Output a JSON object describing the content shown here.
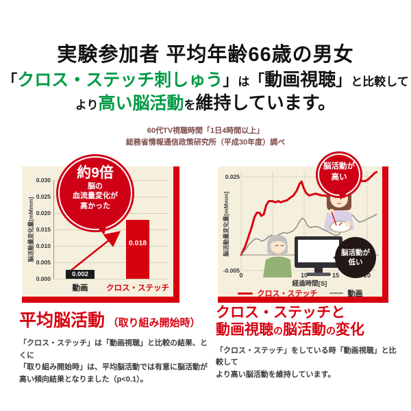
{
  "colors": {
    "red": "#d7000f",
    "green": "#009944",
    "cream": "#f5efdd",
    "maroon": "#7c4a4a",
    "black": "#1a1a1a",
    "gray_line": "#8a8a8a"
  },
  "headline": {
    "line1": "実験参加者 平均年齢66歳の男女",
    "line3_full": "より高い脳活動を維持しています。"
  },
  "rich": {
    "headline_line2": [
      {
        "t": "「",
        "c": "br"
      },
      {
        "t": "クロス・ステッチ刺しゅう",
        "c": "green"
      },
      {
        "t": "」",
        "c": "br"
      },
      {
        "t": "は",
        "c": "small"
      },
      {
        "t": "「",
        "c": "br"
      },
      {
        "t": "動画視聴",
        "c": "big"
      },
      {
        "t": "」",
        "c": "br"
      },
      {
        "t": "と比較して",
        "c": "small"
      }
    ],
    "headline_line3": [
      {
        "t": "より",
        "c": "small"
      },
      {
        "t": "高い脳活動",
        "c": "green"
      },
      {
        "t": "を",
        "c": "small"
      },
      {
        "t": "維持しています。",
        "c": "big"
      }
    ],
    "right_title_line2": [
      {
        "t": "動画視聴",
        "c": "n"
      },
      {
        "t": "の",
        "c": "s"
      },
      {
        "t": "脳活動",
        "c": "n"
      },
      {
        "t": "の",
        "c": "s"
      },
      {
        "t": "変化",
        "c": "n"
      }
    ]
  },
  "source": {
    "line1": "60代TV視聴時間「1日4時間以上」",
    "line2": "総務省情報通信政策研究所（平成30年度）調べ"
  },
  "chart_data": [
    {
      "type": "bar",
      "ylabel": "脳活動量変化量[mMmm]",
      "categories": [
        "動画",
        "クロス・ステッチ"
      ],
      "values": [
        0.002,
        0.018
      ],
      "value_labels": [
        "0.002",
        "0.018"
      ],
      "bar_colors": [
        "#1a1a1a",
        "#d7000f"
      ],
      "category_colors": [
        "#1a1a1a",
        "#d7000f"
      ],
      "ytick_labels": [
        "0.000",
        "0.005",
        "0.010",
        "0.015",
        "0.020",
        "0.025",
        "0.030"
      ],
      "ytick_step": 0.005,
      "ylim": [
        0,
        0.032
      ],
      "grid": "dotted horizontal",
      "annotation_bubble": {
        "headline": "約9倍",
        "lines": [
          "脳の",
          "血流量変化が",
          "高かった"
        ]
      }
    },
    {
      "type": "line",
      "xlabel": "経過時間[S]",
      "ylabel": "脳活動量変化量[mMmm]",
      "xticks": [
        0,
        5,
        10,
        15,
        20
      ],
      "xlim": [
        0,
        21.8
      ],
      "ylim": [
        -0.005,
        0.0285
      ],
      "ytick_top": {
        "value": 0.025,
        "label": "0.025"
      },
      "ytick_bottom": {
        "value": -0.005,
        "label": "-0.005"
      },
      "zero_line": 0,
      "legend_position": "bottom",
      "series": [
        {
          "name": "クロス・ステッチ",
          "color": "#d7000f",
          "width": 3,
          "points": [
            [
              0,
              0
            ],
            [
              0.7,
              0.003
            ],
            [
              1.2,
              0.006
            ],
            [
              1.7,
              0.009
            ],
            [
              2.1,
              0.012
            ],
            [
              2.5,
              0.0135
            ],
            [
              2.9,
              0.0135
            ],
            [
              3.2,
              0.0125
            ],
            [
              3.6,
              0.013
            ],
            [
              4.0,
              0.016
            ],
            [
              4.4,
              0.0172
            ],
            [
              5.0,
              0.0172
            ],
            [
              5.4,
              0.0168
            ],
            [
              5.9,
              0.0172
            ],
            [
              6.3,
              0.0168
            ],
            [
              6.8,
              0.0172
            ],
            [
              7.3,
              0.0175
            ],
            [
              7.8,
              0.0183
            ],
            [
              8.3,
              0.019
            ],
            [
              8.8,
              0.0205
            ],
            [
              9.3,
              0.0228
            ],
            [
              9.6,
              0.0235
            ],
            [
              9.9,
              0.0215
            ],
            [
              10.3,
              0.0198
            ],
            [
              10.8,
              0.019
            ],
            [
              11.3,
              0.0193
            ],
            [
              11.8,
              0.0196
            ],
            [
              12.3,
              0.0193
            ],
            [
              12.8,
              0.019
            ],
            [
              13.3,
              0.019
            ],
            [
              13.8,
              0.0185
            ],
            [
              14.3,
              0.018
            ],
            [
              14.8,
              0.0177
            ],
            [
              15.3,
              0.017
            ],
            [
              15.8,
              0.0167
            ],
            [
              16.2,
              0.0172
            ],
            [
              16.6,
              0.019
            ],
            [
              17.0,
              0.021
            ],
            [
              17.4,
              0.0228
            ],
            [
              17.8,
              0.0238
            ],
            [
              18.2,
              0.0243
            ],
            [
              18.7,
              0.0242
            ],
            [
              19.2,
              0.0236
            ],
            [
              19.7,
              0.0236
            ],
            [
              20.2,
              0.0242
            ],
            [
              20.7,
              0.0252
            ],
            [
              21.2,
              0.0262
            ],
            [
              21.5,
              0.0265
            ]
          ]
        },
        {
          "name": "動画",
          "color": "#8a8a8a",
          "width": 1.5,
          "points": [
            [
              0,
              0
            ],
            [
              0.6,
              0.0015
            ],
            [
              1.2,
              0.0032
            ],
            [
              1.8,
              0.0045
            ],
            [
              2.3,
              0.0052
            ],
            [
              2.8,
              0.005
            ],
            [
              3.3,
              0.0044
            ],
            [
              3.8,
              0.0048
            ],
            [
              4.3,
              0.0058
            ],
            [
              4.8,
              0.0063
            ],
            [
              5.3,
              0.006
            ],
            [
              5.8,
              0.0063
            ],
            [
              6.3,
              0.0068
            ],
            [
              6.8,
              0.0072
            ],
            [
              7.3,
              0.0069
            ],
            [
              7.8,
              0.0073
            ],
            [
              8.3,
              0.0078
            ],
            [
              8.8,
              0.009
            ],
            [
              9.3,
              0.0108
            ],
            [
              9.7,
              0.0118
            ],
            [
              10.1,
              0.0112
            ],
            [
              10.5,
              0.0095
            ],
            [
              11.0,
              0.0087
            ],
            [
              11.5,
              0.009
            ],
            [
              12.0,
              0.0091
            ],
            [
              12.5,
              0.0087
            ],
            [
              13.0,
              0.0081
            ],
            [
              13.5,
              0.0077
            ],
            [
              14.0,
              0.0072
            ],
            [
              14.5,
              0.0067
            ],
            [
              15.0,
              0.0062
            ],
            [
              15.5,
              0.0065
            ],
            [
              16.0,
              0.0078
            ],
            [
              16.5,
              0.0098
            ],
            [
              17.0,
              0.0115
            ],
            [
              17.4,
              0.0128
            ],
            [
              17.8,
              0.0125
            ],
            [
              18.3,
              0.0112
            ],
            [
              18.8,
              0.0105
            ],
            [
              19.3,
              0.0108
            ],
            [
              19.8,
              0.0113
            ],
            [
              20.3,
              0.0118
            ],
            [
              20.8,
              0.0122
            ],
            [
              21.3,
              0.0128
            ],
            [
              21.5,
              0.013
            ]
          ]
        }
      ],
      "bubbles": {
        "high": {
          "lines": [
            "脳活動が",
            "高い"
          ]
        },
        "low": {
          "lines": [
            "脳活動が",
            "低い"
          ]
        }
      },
      "illustrations": [
        "woman-cross-stitching",
        "man-watching-monitor"
      ]
    }
  ],
  "sections": {
    "left": {
      "title_main": "平均脳活動",
      "title_sub": "（取り組み開始時）",
      "body": [
        "「クロス・ステッチ」は「動画視聴」と比較の結果、とくに",
        "「取り組み開始時」は、平均脳活動では有意に脳活動が",
        "高い傾向結果となりました（p<0.1）。"
      ]
    },
    "right": {
      "title_line1": "クロス・ステッチと",
      "body": [
        "「クロス・ステッチ」をしている時「動画視聴」と比較して",
        "より高い脳活動を維持しています。"
      ]
    }
  }
}
